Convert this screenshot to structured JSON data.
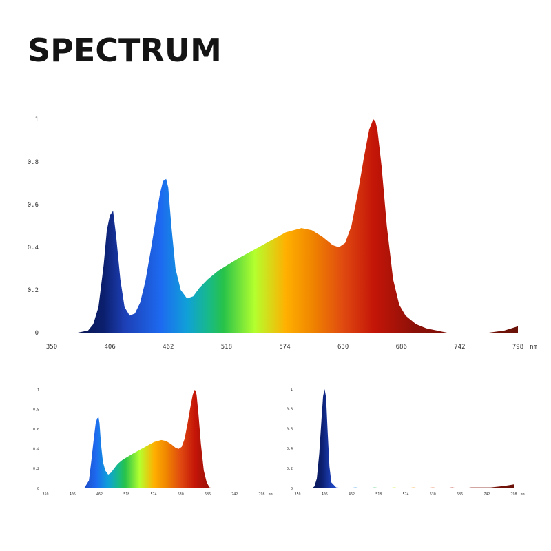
{
  "title": "SPECTRUM",
  "chart_data": [
    {
      "type": "area",
      "title": "",
      "xlabel": "",
      "ylabel": "",
      "x_unit": "nm",
      "xlim": [
        350,
        798
      ],
      "ylim": [
        0,
        1
      ],
      "grid": false,
      "x_ticks": [
        "350",
        "406",
        "462",
        "518",
        "574",
        "630",
        "686",
        "742",
        "798"
      ],
      "y_ticks": [
        "0",
        "0.2",
        "0.4",
        "0.6",
        "0.8",
        "1"
      ],
      "series": [
        {
          "x": [
            350,
            375,
            385,
            390,
            395,
            400,
            403,
            406,
            409,
            412,
            416,
            420,
            425,
            430,
            435,
            440,
            445,
            450,
            454,
            457,
            460,
            462,
            465,
            469,
            474,
            480,
            486,
            492,
            500,
            510,
            520,
            530,
            545,
            560,
            575,
            590,
            600,
            610,
            620,
            626,
            632,
            638,
            644,
            650,
            655,
            659,
            661,
            663,
            667,
            672,
            678,
            684,
            690,
            700,
            710,
            720,
            730,
            742,
            755,
            770,
            785,
            798
          ],
          "y": [
            0.0,
            0.0,
            0.01,
            0.04,
            0.12,
            0.32,
            0.48,
            0.55,
            0.57,
            0.45,
            0.25,
            0.12,
            0.08,
            0.09,
            0.14,
            0.24,
            0.38,
            0.53,
            0.65,
            0.71,
            0.72,
            0.68,
            0.5,
            0.3,
            0.2,
            0.16,
            0.17,
            0.21,
            0.25,
            0.29,
            0.32,
            0.35,
            0.39,
            0.43,
            0.47,
            0.49,
            0.48,
            0.45,
            0.41,
            0.4,
            0.42,
            0.5,
            0.65,
            0.82,
            0.95,
            1.0,
            0.99,
            0.95,
            0.78,
            0.5,
            0.25,
            0.13,
            0.08,
            0.04,
            0.02,
            0.01,
            0.0,
            0.0,
            0.0,
            0.0,
            0.01,
            0.03
          ]
        }
      ]
    },
    {
      "type": "area",
      "title": "",
      "xlabel": "",
      "ylabel": "",
      "x_unit": "nm",
      "xlim": [
        350,
        798
      ],
      "ylim": [
        0,
        1
      ],
      "grid": false,
      "x_ticks": [
        "350",
        "406",
        "462",
        "518",
        "574",
        "630",
        "686",
        "742",
        "798"
      ],
      "y_ticks": [
        "0",
        "0.2",
        "0.4",
        "0.6",
        "0.8",
        "1"
      ],
      "series": [
        {
          "x": [
            430,
            440,
            445,
            450,
            454,
            457,
            460,
            462,
            465,
            469,
            474,
            480,
            486,
            492,
            500,
            510,
            520,
            530,
            545,
            560,
            575,
            590,
            600,
            610,
            620,
            626,
            632,
            638,
            644,
            650,
            655,
            659,
            661,
            663,
            667,
            672,
            678,
            684,
            690,
            700
          ],
          "y": [
            0.0,
            0.08,
            0.28,
            0.5,
            0.66,
            0.71,
            0.72,
            0.66,
            0.45,
            0.27,
            0.18,
            0.14,
            0.16,
            0.2,
            0.25,
            0.29,
            0.32,
            0.35,
            0.39,
            0.43,
            0.47,
            0.49,
            0.48,
            0.45,
            0.41,
            0.4,
            0.42,
            0.5,
            0.65,
            0.82,
            0.95,
            1.0,
            0.99,
            0.95,
            0.75,
            0.45,
            0.18,
            0.06,
            0.01,
            0.0
          ]
        }
      ]
    },
    {
      "type": "area",
      "title": "",
      "xlabel": "",
      "ylabel": "",
      "x_unit": "nm",
      "xlim": [
        350,
        798
      ],
      "ylim": [
        0,
        1
      ],
      "grid": false,
      "x_ticks": [
        "350",
        "406",
        "462",
        "518",
        "574",
        "630",
        "686",
        "742",
        "798"
      ],
      "y_ticks": [
        "0",
        "0.2",
        "0.4",
        "0.6",
        "0.8",
        "1"
      ],
      "series": [
        {
          "x": [
            350,
            380,
            385,
            390,
            395,
            400,
            403,
            406,
            409,
            412,
            416,
            420,
            430,
            450,
            470,
            490,
            510,
            530,
            550,
            570,
            590,
            610,
            630,
            650,
            670,
            690,
            710,
            730,
            750,
            770,
            785,
            798
          ],
          "y": [
            0.0,
            0.0,
            0.02,
            0.1,
            0.35,
            0.72,
            0.93,
            1.0,
            0.92,
            0.6,
            0.22,
            0.06,
            0.01,
            0.0,
            0.01,
            0.0,
            0.01,
            0.0,
            0.01,
            0.0,
            0.01,
            0.0,
            0.01,
            0.0,
            0.01,
            0.0,
            0.01,
            0.01,
            0.01,
            0.02,
            0.03,
            0.04
          ]
        }
      ]
    }
  ],
  "colors": {
    "title": "#141414",
    "tick": "#333333",
    "gradient_stops": [
      {
        "nm": 350,
        "color": "#0a0f3a"
      },
      {
        "nm": 400,
        "color": "#0b1f6e"
      },
      {
        "nm": 420,
        "color": "#1d3fb5"
      },
      {
        "nm": 455,
        "color": "#1d6af0"
      },
      {
        "nm": 480,
        "color": "#10a0d8"
      },
      {
        "nm": 500,
        "color": "#17b98c"
      },
      {
        "nm": 515,
        "color": "#27c24a"
      },
      {
        "nm": 545,
        "color": "#b4ff2e"
      },
      {
        "nm": 575,
        "color": "#ffb000"
      },
      {
        "nm": 600,
        "color": "#f08600"
      },
      {
        "nm": 630,
        "color": "#e04a10"
      },
      {
        "nm": 660,
        "color": "#c41508"
      },
      {
        "nm": 700,
        "color": "#8a1008"
      },
      {
        "nm": 798,
        "color": "#6a1208"
      }
    ]
  }
}
